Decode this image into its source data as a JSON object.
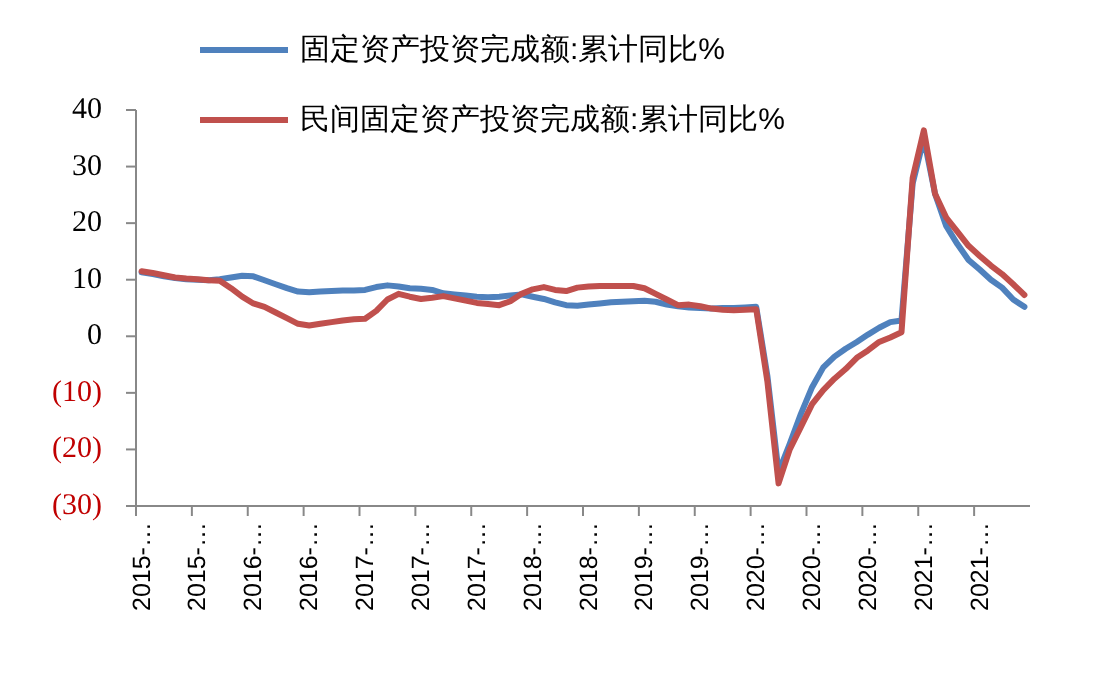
{
  "chart_data": {
    "type": "line",
    "categories": [
      "2015-…",
      null,
      null,
      null,
      null,
      "2015-…",
      null,
      null,
      null,
      null,
      "2016-…",
      null,
      null,
      null,
      null,
      "2016-…",
      null,
      null,
      null,
      null,
      "2017-…",
      null,
      null,
      null,
      null,
      "2017-…",
      null,
      null,
      null,
      null,
      "2017-…",
      null,
      null,
      null,
      null,
      "2018-…",
      null,
      null,
      null,
      null,
      "2018-…",
      null,
      null,
      null,
      null,
      "2019-…",
      null,
      null,
      null,
      null,
      "2019-…",
      null,
      null,
      null,
      null,
      "2020-…",
      null,
      null,
      null,
      null,
      "2020-…",
      null,
      null,
      null,
      null,
      "2020-…",
      null,
      null,
      null,
      null,
      "2021-…",
      null,
      null,
      null,
      null,
      "2021-…",
      null,
      null,
      null,
      null
    ],
    "series": [
      {
        "name": "固定资产投资完成额:累计同比%",
        "color": "#4f81bd",
        "values": [
          11.3,
          11.0,
          10.6,
          10.3,
          10.1,
          10.0,
          9.9,
          10.1,
          10.4,
          10.7,
          10.6,
          9.9,
          9.2,
          8.5,
          7.9,
          7.8,
          7.9,
          8.0,
          8.1,
          8.1,
          8.2,
          8.7,
          9.0,
          8.8,
          8.5,
          8.4,
          8.2,
          7.6,
          7.4,
          7.2,
          7.0,
          6.9,
          7.0,
          7.2,
          7.4,
          7.0,
          6.6,
          6.0,
          5.5,
          5.4,
          5.6,
          5.8,
          6.0,
          6.1,
          6.2,
          6.3,
          6.1,
          5.6,
          5.3,
          5.1,
          5.0,
          4.9,
          5.0,
          5.0,
          5.1,
          5.2,
          -7,
          -24,
          -19,
          -13.7,
          -9,
          -5.5,
          -3.6,
          -2.2,
          -1.0,
          0.3,
          1.5,
          2.5,
          2.8,
          27,
          35,
          25.2,
          19.5,
          16.3,
          13.5,
          11.8,
          10.0,
          8.6,
          6.5,
          5.2
        ]
      },
      {
        "name": "民间固定资产投资完成额:累计同比%",
        "color": "#c0504d",
        "values": [
          11.5,
          11.2,
          10.8,
          10.4,
          10.2,
          10.1,
          9.9,
          9.8,
          8.5,
          7.0,
          5.8,
          5.2,
          4.2,
          3.2,
          2.2,
          1.9,
          2.2,
          2.5,
          2.8,
          3.0,
          3.1,
          4.5,
          6.5,
          7.5,
          7.0,
          6.6,
          6.8,
          7.1,
          6.7,
          6.3,
          5.9,
          5.7,
          5.5,
          6.2,
          7.5,
          8.3,
          8.7,
          8.2,
          8.0,
          8.6,
          8.8,
          8.9,
          8.9,
          8.9,
          8.9,
          8.5,
          7.5,
          6.5,
          5.5,
          5.6,
          5.3,
          4.9,
          4.7,
          4.6,
          4.7,
          4.8,
          -8,
          -26,
          -20,
          -16,
          -12,
          -9.5,
          -7.5,
          -5.8,
          -3.8,
          -2.5,
          -1.0,
          -0.2,
          0.7,
          28,
          36.4,
          25.2,
          21,
          18.5,
          16,
          14.2,
          12.5,
          11.0,
          9.2,
          7.3
        ]
      }
    ],
    "ylim": [
      -30,
      40
    ],
    "yticks": [
      40,
      30,
      20,
      10,
      0,
      {
        "value": -10,
        "label": "(10)"
      },
      {
        "value": -20,
        "label": "(20)"
      },
      {
        "value": -30,
        "label": "(30)"
      }
    ],
    "grid": false,
    "legend": "top",
    "marker": "none",
    "line_style": "solid"
  }
}
